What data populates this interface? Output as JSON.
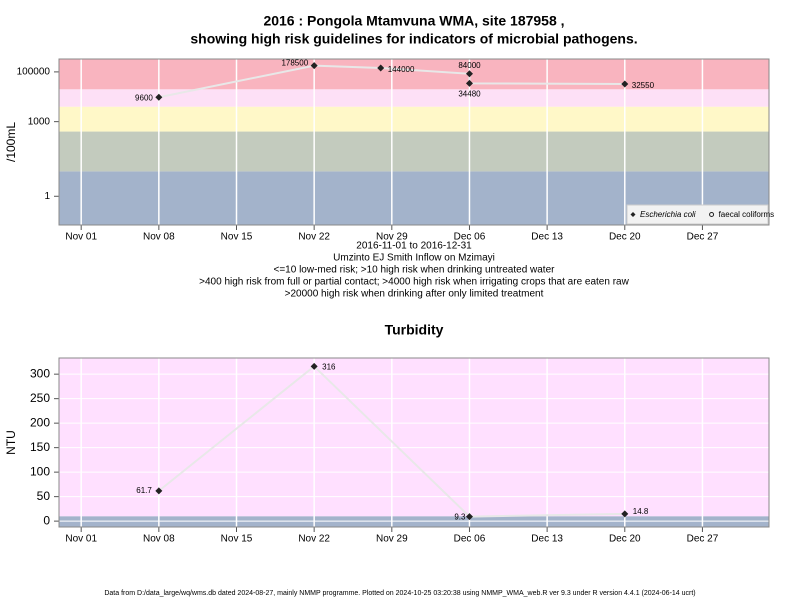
{
  "chart_data": [
    {
      "type": "line",
      "title": "2016 : Pongola Mtamvuna WMA, site 187958 ,",
      "subtitle": "showing high risk guidelines for indicators of microbial pathogens.",
      "ylabel": "/100mL",
      "log_scale": true,
      "ylim": [
        0.07,
        330000
      ],
      "yticks": [
        1,
        1000,
        100000
      ],
      "xlim": [
        "Oct 30",
        "Jan 02"
      ],
      "xticks": [
        "Nov 01",
        "Nov 08",
        "Nov 15",
        "Nov 22",
        "Nov 29",
        "Dec 06",
        "Dec 13",
        "Dec 20",
        "Dec 27"
      ],
      "thresholds": [
        10,
        400,
        4000,
        20000
      ],
      "band_colors": [
        "#a3b3cb",
        "#c3cbbe",
        "#fff8c8",
        "#fde0f6",
        "#f9b4bf"
      ],
      "grid": true,
      "legend": "bottom right",
      "series": [
        {
          "name": "Escherichia coli",
          "color": "#222222",
          "line_color": "#e8e8e8",
          "x": [
            "Nov 08",
            "Nov 22",
            "Nov 28",
            "Dec 06",
            "Dec 06",
            "Dec 20"
          ],
          "values": [
            9600,
            178500,
            144000,
            84000,
            34480,
            32550
          ]
        },
        {
          "name": "faecal coliforms",
          "color": "#222222",
          "line_color": "#e8e8e8",
          "x": [],
          "values": []
        }
      ],
      "notes": [
        "2016-11-01 to 2016-12-31",
        "Umzinto EJ Smith Inflow on Mzimayi",
        "<=10 low-med risk; >10 high risk when drinking untreated water",
        ">400 high risk from full or partial contact; >4000 high risk when irrigating crops that are eaten raw",
        ">20000 high risk when drinking after only limited treatment"
      ]
    },
    {
      "type": "line",
      "title": "Turbidity",
      "ylabel": "NTU",
      "log_scale": false,
      "ylim": [
        -12,
        333
      ],
      "yticks": [
        0,
        50,
        100,
        150,
        200,
        250,
        300
      ],
      "xlim": [
        "Oct 30",
        "Jan 02"
      ],
      "xticks": [
        "Nov 01",
        "Nov 08",
        "Nov 15",
        "Nov 22",
        "Nov 29",
        "Dec 06",
        "Dec 13",
        "Dec 20",
        "Dec 27"
      ],
      "thresholds": [
        10
      ],
      "band_colors": [
        "#a3b3cb",
        "#ffe0ff"
      ],
      "grid": true,
      "series": [
        {
          "name": "Turbidity",
          "color": "#222222",
          "line_color": "#e8e8e8",
          "x": [
            "Nov 08",
            "Nov 22",
            "Dec 06",
            "Dec 20"
          ],
          "values": [
            61.7,
            316,
            9.3,
            14.8
          ]
        }
      ]
    }
  ],
  "footer": "Data from D:/data_large/wq/wms.db dated 2024-08-27, mainly NMMP programme. Plotted on 2024-10-25 03:20:38 using NMMP_WMA_web.R ver 9.3 under R version 4.4.1 (2024-06-14 ucrt)"
}
